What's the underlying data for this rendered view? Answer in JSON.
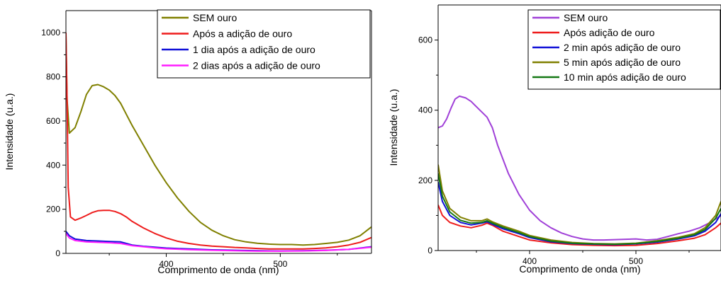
{
  "chart_data": [
    {
      "type": "line",
      "xlabel": "Comprimento de onda (nm)",
      "ylabel": "Intensidade (u.a.)",
      "xlim": [
        312,
        580
      ],
      "ylim": [
        0,
        1100
      ],
      "xticks": [
        400,
        500
      ],
      "yticks": [
        0,
        200,
        400,
        600,
        800,
        1000
      ],
      "legend_position": "top-right",
      "series": [
        {
          "name": "SEM ouro",
          "color": "#808000",
          "points": [
            [
              312,
              990
            ],
            [
              313,
              700
            ],
            [
              315,
              545
            ],
            [
              320,
              570
            ],
            [
              325,
              640
            ],
            [
              330,
              720
            ],
            [
              335,
              760
            ],
            [
              340,
              765
            ],
            [
              345,
              755
            ],
            [
              350,
              740
            ],
            [
              355,
              715
            ],
            [
              360,
              680
            ],
            [
              365,
              630
            ],
            [
              370,
              580
            ],
            [
              380,
              490
            ],
            [
              390,
              400
            ],
            [
              400,
              320
            ],
            [
              410,
              250
            ],
            [
              420,
              190
            ],
            [
              430,
              140
            ],
            [
              440,
              105
            ],
            [
              450,
              80
            ],
            [
              460,
              62
            ],
            [
              470,
              52
            ],
            [
              480,
              46
            ],
            [
              490,
              42
            ],
            [
              500,
              40
            ],
            [
              510,
              40
            ],
            [
              520,
              38
            ],
            [
              530,
              40
            ],
            [
              540,
              45
            ],
            [
              550,
              50
            ],
            [
              560,
              60
            ],
            [
              570,
              80
            ],
            [
              580,
              120
            ]
          ]
        },
        {
          "name": "Após a adição de ouro",
          "color": "#ee1c1c",
          "points": [
            [
              312,
              1000
            ],
            [
              313,
              700
            ],
            [
              314,
              300
            ],
            [
              316,
              165
            ],
            [
              320,
              150
            ],
            [
              325,
              160
            ],
            [
              330,
              172
            ],
            [
              335,
              185
            ],
            [
              340,
              193
            ],
            [
              345,
              195
            ],
            [
              350,
              195
            ],
            [
              355,
              190
            ],
            [
              360,
              180
            ],
            [
              365,
              165
            ],
            [
              370,
              145
            ],
            [
              380,
              115
            ],
            [
              390,
              90
            ],
            [
              400,
              70
            ],
            [
              410,
              55
            ],
            [
              420,
              45
            ],
            [
              430,
              38
            ],
            [
              440,
              33
            ],
            [
              450,
              30
            ],
            [
              460,
              27
            ],
            [
              470,
              25
            ],
            [
              480,
              22
            ],
            [
              490,
              20
            ],
            [
              500,
              20
            ],
            [
              510,
              20
            ],
            [
              520,
              20
            ],
            [
              530,
              22
            ],
            [
              540,
              25
            ],
            [
              550,
              30
            ],
            [
              560,
              38
            ],
            [
              570,
              50
            ],
            [
              580,
              72
            ]
          ]
        },
        {
          "name": "1 dia após a adição de ouro",
          "color": "#1010d8",
          "points": [
            [
              312,
              100
            ],
            [
              315,
              80
            ],
            [
              320,
              65
            ],
            [
              330,
              58
            ],
            [
              340,
              56
            ],
            [
              350,
              54
            ],
            [
              360,
              52
            ],
            [
              365,
              45
            ],
            [
              370,
              38
            ],
            [
              380,
              32
            ],
            [
              390,
              28
            ],
            [
              400,
              24
            ],
            [
              420,
              20
            ],
            [
              440,
              16
            ],
            [
              460,
              14
            ],
            [
              480,
              12
            ],
            [
              500,
              11
            ],
            [
              520,
              12
            ],
            [
              540,
              14
            ],
            [
              560,
              18
            ],
            [
              580,
              30
            ]
          ]
        },
        {
          "name": "2 dias após a adição de ouro",
          "color": "#ff1cff",
          "points": [
            [
              312,
              90
            ],
            [
              315,
              70
            ],
            [
              320,
              58
            ],
            [
              330,
              52
            ],
            [
              340,
              50
            ],
            [
              350,
              48
            ],
            [
              360,
              45
            ],
            [
              365,
              40
            ],
            [
              370,
              35
            ],
            [
              380,
              30
            ],
            [
              390,
              25
            ],
            [
              400,
              21
            ],
            [
              420,
              17
            ],
            [
              440,
              14
            ],
            [
              460,
              12
            ],
            [
              480,
              10
            ],
            [
              500,
              10
            ],
            [
              520,
              11
            ],
            [
              540,
              13
            ],
            [
              560,
              18
            ],
            [
              580,
              28
            ]
          ]
        }
      ]
    },
    {
      "type": "line",
      "xlabel": "Comprimento de onda (nm)",
      "ylabel": "Intensidade (u.a.)",
      "xlim": [
        314,
        580
      ],
      "ylim": [
        0,
        700
      ],
      "xticks": [
        400,
        500
      ],
      "yticks": [
        0,
        200,
        400,
        600
      ],
      "legend_position": "top-right",
      "series": [
        {
          "name": "SEM ouro",
          "color": "#a040d8",
          "points": [
            [
              314,
              350
            ],
            [
              318,
              355
            ],
            [
              322,
              375
            ],
            [
              326,
              405
            ],
            [
              330,
              432
            ],
            [
              334,
              440
            ],
            [
              340,
              435
            ],
            [
              345,
              425
            ],
            [
              350,
              410
            ],
            [
              355,
              395
            ],
            [
              360,
              380
            ],
            [
              365,
              350
            ],
            [
              370,
              300
            ],
            [
              375,
              260
            ],
            [
              380,
              220
            ],
            [
              390,
              160
            ],
            [
              400,
              115
            ],
            [
              410,
              85
            ],
            [
              420,
              65
            ],
            [
              430,
              50
            ],
            [
              440,
              40
            ],
            [
              450,
              33
            ],
            [
              460,
              30
            ],
            [
              470,
              30
            ],
            [
              480,
              31
            ],
            [
              490,
              32
            ],
            [
              500,
              33
            ],
            [
              510,
              30
            ],
            [
              520,
              32
            ],
            [
              530,
              40
            ],
            [
              540,
              48
            ],
            [
              550,
              55
            ],
            [
              560,
              65
            ],
            [
              570,
              80
            ],
            [
              580,
              100
            ]
          ]
        },
        {
          "name": "Após adição de ouro",
          "color": "#ee1c1c",
          "points": [
            [
              314,
              130
            ],
            [
              318,
              100
            ],
            [
              325,
              80
            ],
            [
              335,
              70
            ],
            [
              345,
              65
            ],
            [
              355,
              72
            ],
            [
              360,
              78
            ],
            [
              365,
              72
            ],
            [
              375,
              55
            ],
            [
              390,
              40
            ],
            [
              400,
              30
            ],
            [
              420,
              22
            ],
            [
              440,
              17
            ],
            [
              460,
              15
            ],
            [
              480,
              14
            ],
            [
              500,
              15
            ],
            [
              520,
              20
            ],
            [
              540,
              28
            ],
            [
              555,
              35
            ],
            [
              565,
              45
            ],
            [
              575,
              65
            ],
            [
              580,
              78
            ]
          ]
        },
        {
          "name": "2 min após adição de ouro",
          "color": "#1010d8",
          "points": [
            [
              314,
              195
            ],
            [
              318,
              140
            ],
            [
              325,
              100
            ],
            [
              335,
              80
            ],
            [
              345,
              73
            ],
            [
              355,
              78
            ],
            [
              360,
              82
            ],
            [
              365,
              75
            ],
            [
              375,
              62
            ],
            [
              390,
              48
            ],
            [
              400,
              37
            ],
            [
              420,
              25
            ],
            [
              440,
              20
            ],
            [
              460,
              18
            ],
            [
              480,
              17
            ],
            [
              500,
              19
            ],
            [
              520,
              24
            ],
            [
              540,
              33
            ],
            [
              555,
              42
            ],
            [
              565,
              55
            ],
            [
              575,
              80
            ],
            [
              580,
              105
            ]
          ]
        },
        {
          "name": "5 min após adição de ouro",
          "color": "#808000",
          "points": [
            [
              314,
              245
            ],
            [
              318,
              170
            ],
            [
              325,
              120
            ],
            [
              335,
              95
            ],
            [
              345,
              85
            ],
            [
              355,
              85
            ],
            [
              360,
              90
            ],
            [
              365,
              82
            ],
            [
              375,
              70
            ],
            [
              390,
              55
            ],
            [
              400,
              43
            ],
            [
              420,
              30
            ],
            [
              440,
              23
            ],
            [
              460,
              20
            ],
            [
              480,
              19
            ],
            [
              500,
              21
            ],
            [
              520,
              28
            ],
            [
              540,
              38
            ],
            [
              555,
              48
            ],
            [
              565,
              65
            ],
            [
              575,
              100
            ],
            [
              580,
              140
            ]
          ]
        },
        {
          "name": "10 min após adição de ouro",
          "color": "#147814",
          "points": [
            [
              314,
              220
            ],
            [
              318,
              155
            ],
            [
              325,
              110
            ],
            [
              335,
              86
            ],
            [
              345,
              78
            ],
            [
              355,
              80
            ],
            [
              360,
              85
            ],
            [
              365,
              78
            ],
            [
              375,
              66
            ],
            [
              390,
              51
            ],
            [
              400,
              40
            ],
            [
              420,
              27
            ],
            [
              440,
              21
            ],
            [
              460,
              19
            ],
            [
              480,
              18
            ],
            [
              500,
              20
            ],
            [
              520,
              26
            ],
            [
              540,
              35
            ],
            [
              555,
              45
            ],
            [
              565,
              60
            ],
            [
              575,
              92
            ],
            [
              580,
              120
            ]
          ]
        }
      ]
    }
  ]
}
